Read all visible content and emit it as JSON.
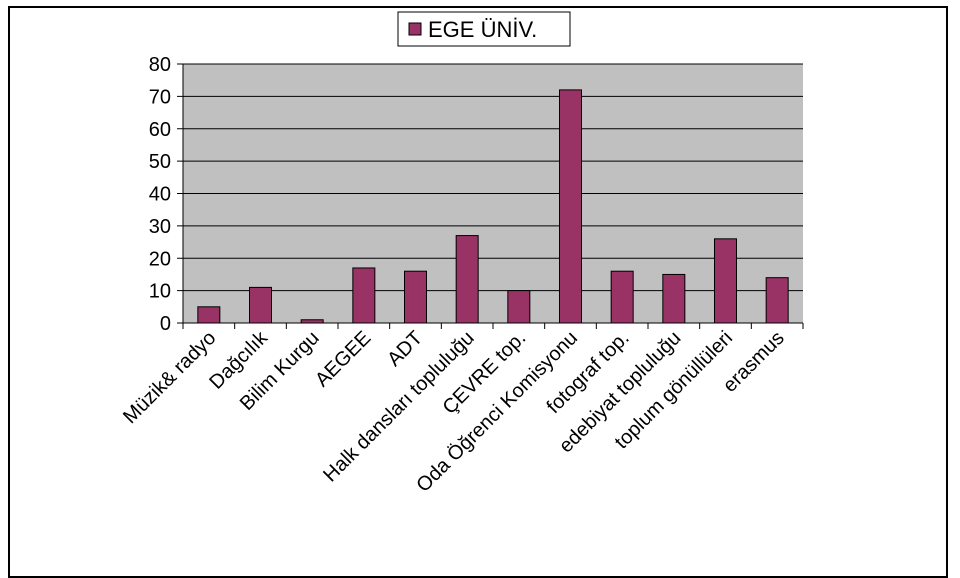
{
  "chart_data": {
    "type": "bar",
    "title": "",
    "xlabel": "",
    "ylabel": "",
    "ylim": [
      0,
      80
    ],
    "yticks": [
      0,
      10,
      20,
      30,
      40,
      50,
      60,
      70,
      80
    ],
    "grid": true,
    "legend_position": "top-center",
    "categories": [
      "Müzik& radyo",
      "Dağcılık",
      "Bilim Kurgu",
      "AEGEE",
      "ADT",
      "Halk dansları topluluğu",
      "ÇEVRE top.",
      "Oda Öğrenci Komisyonu",
      "fotograf top.",
      "edebiyat topluluğu",
      "toplum gönüllüleri",
      "erasmus"
    ],
    "series": [
      {
        "name": "EGE ÜNİV.",
        "color": "#993366",
        "values": [
          5,
          11,
          1,
          17,
          16,
          27,
          10,
          72,
          16,
          15,
          26,
          14
        ]
      }
    ],
    "plot_background": "#c0c0c0"
  }
}
